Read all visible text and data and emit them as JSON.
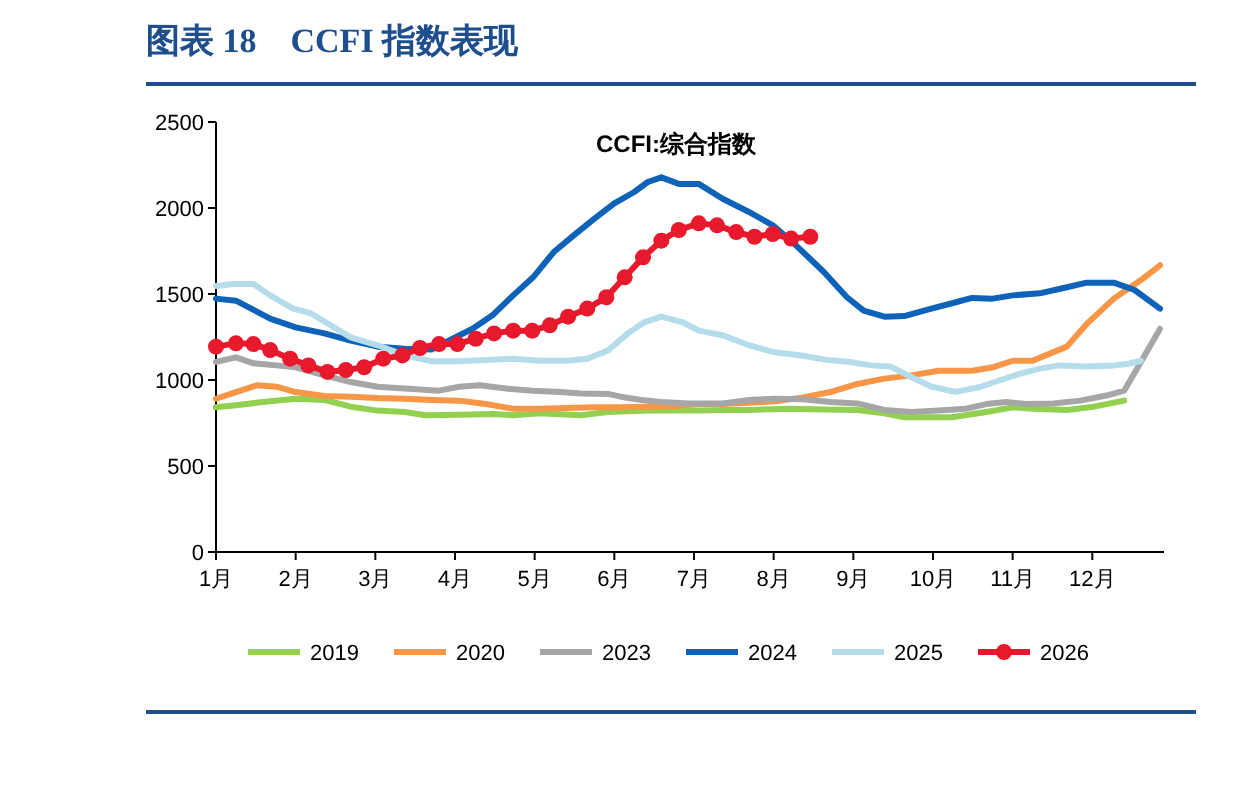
{
  "chart_data": {
    "type": "line",
    "title": "图表 18　CCFI 指数表现",
    "subtitle": "CCFI:综合指数",
    "xticks": [
      {
        "value": 1,
        "label": "1月"
      },
      {
        "value": 2,
        "label": "2月"
      },
      {
        "value": 3,
        "label": "3月"
      },
      {
        "value": 4,
        "label": "4月"
      },
      {
        "value": 5,
        "label": "5月"
      },
      {
        "value": 6,
        "label": "6月"
      },
      {
        "value": 7,
        "label": "7月"
      },
      {
        "value": 8,
        "label": "8月"
      },
      {
        "value": 9,
        "label": "9月"
      },
      {
        "value": 10,
        "label": "10月"
      },
      {
        "value": 11,
        "label": "11月"
      },
      {
        "value": 12,
        "label": "12月"
      }
    ],
    "xlim": [
      1,
      12.9
    ],
    "ylim": [
      0,
      2500
    ],
    "yticks": [
      0,
      500,
      1000,
      1500,
      2000,
      2500
    ],
    "grid": false,
    "legend": "bottom",
    "marker": "none",
    "line_style": "solid",
    "series": [
      {
        "name": "2019",
        "color": "#92d050",
        "x": [
          1,
          1.25,
          1.59,
          2.0,
          2.36,
          2.69,
          3.03,
          3.37,
          3.63,
          4.05,
          4.47,
          4.73,
          5.07,
          5.58,
          5.92,
          6.42,
          6.85,
          7.06,
          7.36,
          7.69,
          8.2,
          8.63,
          9.05,
          9.39,
          9.64,
          10.24,
          10.67,
          11.0,
          11.25,
          11.68,
          12.02,
          12.4
        ],
        "values": [
          841,
          853,
          872,
          891,
          884,
          845,
          822,
          814,
          795,
          798,
          802,
          795,
          806,
          795,
          814,
          822,
          822,
          822,
          826,
          826,
          833,
          829,
          826,
          806,
          783,
          783,
          814,
          841,
          833,
          826,
          845,
          880
        ]
      },
      {
        "name": "2020",
        "color": "#f79646",
        "x": [
          1,
          1.25,
          1.51,
          1.76,
          2.0,
          2.36,
          2.69,
          3.03,
          3.37,
          3.71,
          4.05,
          4.39,
          4.73,
          5.07,
          5.41,
          5.75,
          6.08,
          6.42,
          6.76,
          7.06,
          7.36,
          7.69,
          8.03,
          8.37,
          8.71,
          9.05,
          9.39,
          9.73,
          10.07,
          10.49,
          10.75,
          11.0,
          11.25,
          11.68,
          11.93,
          12.27,
          12.61,
          12.85
        ],
        "values": [
          891,
          930,
          969,
          961,
          930,
          907,
          903,
          895,
          891,
          884,
          880,
          860,
          833,
          833,
          837,
          841,
          841,
          845,
          849,
          860,
          860,
          868,
          876,
          899,
          930,
          977,
          1008,
          1027,
          1054,
          1054,
          1074,
          1112,
          1112,
          1194,
          1326,
          1473,
          1581,
          1667
        ]
      },
      {
        "name": "2023",
        "color": "#a6a6a6",
        "x": [
          1,
          1.25,
          1.47,
          1.76,
          2.0,
          2.36,
          2.69,
          3.03,
          3.37,
          3.8,
          4.05,
          4.31,
          4.64,
          4.98,
          5.32,
          5.58,
          5.92,
          6.08,
          6.34,
          6.59,
          6.93,
          7.06,
          7.36,
          7.69,
          8.03,
          8.37,
          8.71,
          9.05,
          9.39,
          9.73,
          10.07,
          10.41,
          10.67,
          10.92,
          11.17,
          11.51,
          11.85,
          12.19,
          12.4,
          12.61,
          12.85
        ],
        "values": [
          1105,
          1132,
          1097,
          1085,
          1074,
          1027,
          988,
          961,
          950,
          938,
          961,
          969,
          950,
          938,
          930,
          922,
          919,
          903,
          884,
          872,
          864,
          864,
          864,
          884,
          891,
          888,
          872,
          864,
          826,
          814,
          822,
          833,
          860,
          872,
          860,
          864,
          880,
          911,
          938,
          1105,
          1298
        ]
      },
      {
        "name": "2024",
        "color": "#0e63b8",
        "x": [
          1,
          1.25,
          1.68,
          2.0,
          2.36,
          2.69,
          3.03,
          3.37,
          3.71,
          3.97,
          4.22,
          4.47,
          4.73,
          4.98,
          5.24,
          5.49,
          5.75,
          6.0,
          6.25,
          6.42,
          6.59,
          6.81,
          7.06,
          7.36,
          7.69,
          7.99,
          8.28,
          8.63,
          8.92,
          9.13,
          9.39,
          9.64,
          9.98,
          10.24,
          10.49,
          10.75,
          11.0,
          11.34,
          11.68,
          11.93,
          12.27,
          12.53,
          12.85
        ],
        "values": [
          1473,
          1461,
          1357,
          1306,
          1271,
          1229,
          1194,
          1182,
          1178,
          1240,
          1298,
          1376,
          1492,
          1597,
          1744,
          1841,
          1938,
          2027,
          2093,
          2151,
          2178,
          2140,
          2140,
          2054,
          1977,
          1899,
          1783,
          1628,
          1481,
          1403,
          1368,
          1372,
          1415,
          1446,
          1477,
          1473,
          1492,
          1504,
          1539,
          1566,
          1566,
          1523,
          1415
        ]
      },
      {
        "name": "2025",
        "color": "#b4dcea",
        "x": [
          1,
          1.21,
          1.47,
          1.68,
          1.97,
          2.19,
          2.44,
          2.69,
          3.03,
          3.37,
          3.71,
          4.05,
          4.39,
          4.73,
          5.07,
          5.41,
          5.66,
          5.92,
          6.17,
          6.38,
          6.59,
          6.85,
          7.06,
          7.36,
          7.69,
          7.99,
          8.33,
          8.67,
          8.96,
          9.22,
          9.47,
          9.73,
          9.98,
          10.28,
          10.58,
          10.83,
          11.08,
          11.34,
          11.59,
          11.93,
          12.27,
          12.44,
          12.61
        ],
        "values": [
          1547,
          1558,
          1558,
          1492,
          1415,
          1388,
          1318,
          1248,
          1202,
          1143,
          1109,
          1109,
          1116,
          1124,
          1112,
          1112,
          1124,
          1171,
          1271,
          1337,
          1368,
          1337,
          1287,
          1260,
          1202,
          1163,
          1144,
          1117,
          1105,
          1085,
          1078,
          1016,
          962,
          931,
          958,
          997,
          1035,
          1066,
          1085,
          1078,
          1085,
          1093,
          1112
        ]
      },
      {
        "name": "2026",
        "color": "#e8192c",
        "marker": "circle",
        "x": [
          1,
          1.25,
          1.47,
          1.68,
          1.93,
          2.16,
          2.4,
          2.63,
          2.86,
          3.1,
          3.34,
          3.56,
          3.8,
          4.03,
          4.26,
          4.49,
          4.73,
          4.97,
          5.19,
          5.42,
          5.66,
          5.9,
          6.13,
          6.36,
          6.59,
          6.81,
          7.06,
          7.29,
          7.53,
          7.76,
          7.99,
          8.22,
          8.46
        ],
        "values": [
          1194,
          1213,
          1209,
          1174,
          1124,
          1085,
          1047,
          1058,
          1074,
          1124,
          1143,
          1186,
          1209,
          1209,
          1240,
          1271,
          1287,
          1287,
          1318,
          1368,
          1415,
          1481,
          1597,
          1713,
          1810,
          1872,
          1911,
          1899,
          1860,
          1833,
          1849,
          1822,
          1833
        ]
      }
    ]
  }
}
